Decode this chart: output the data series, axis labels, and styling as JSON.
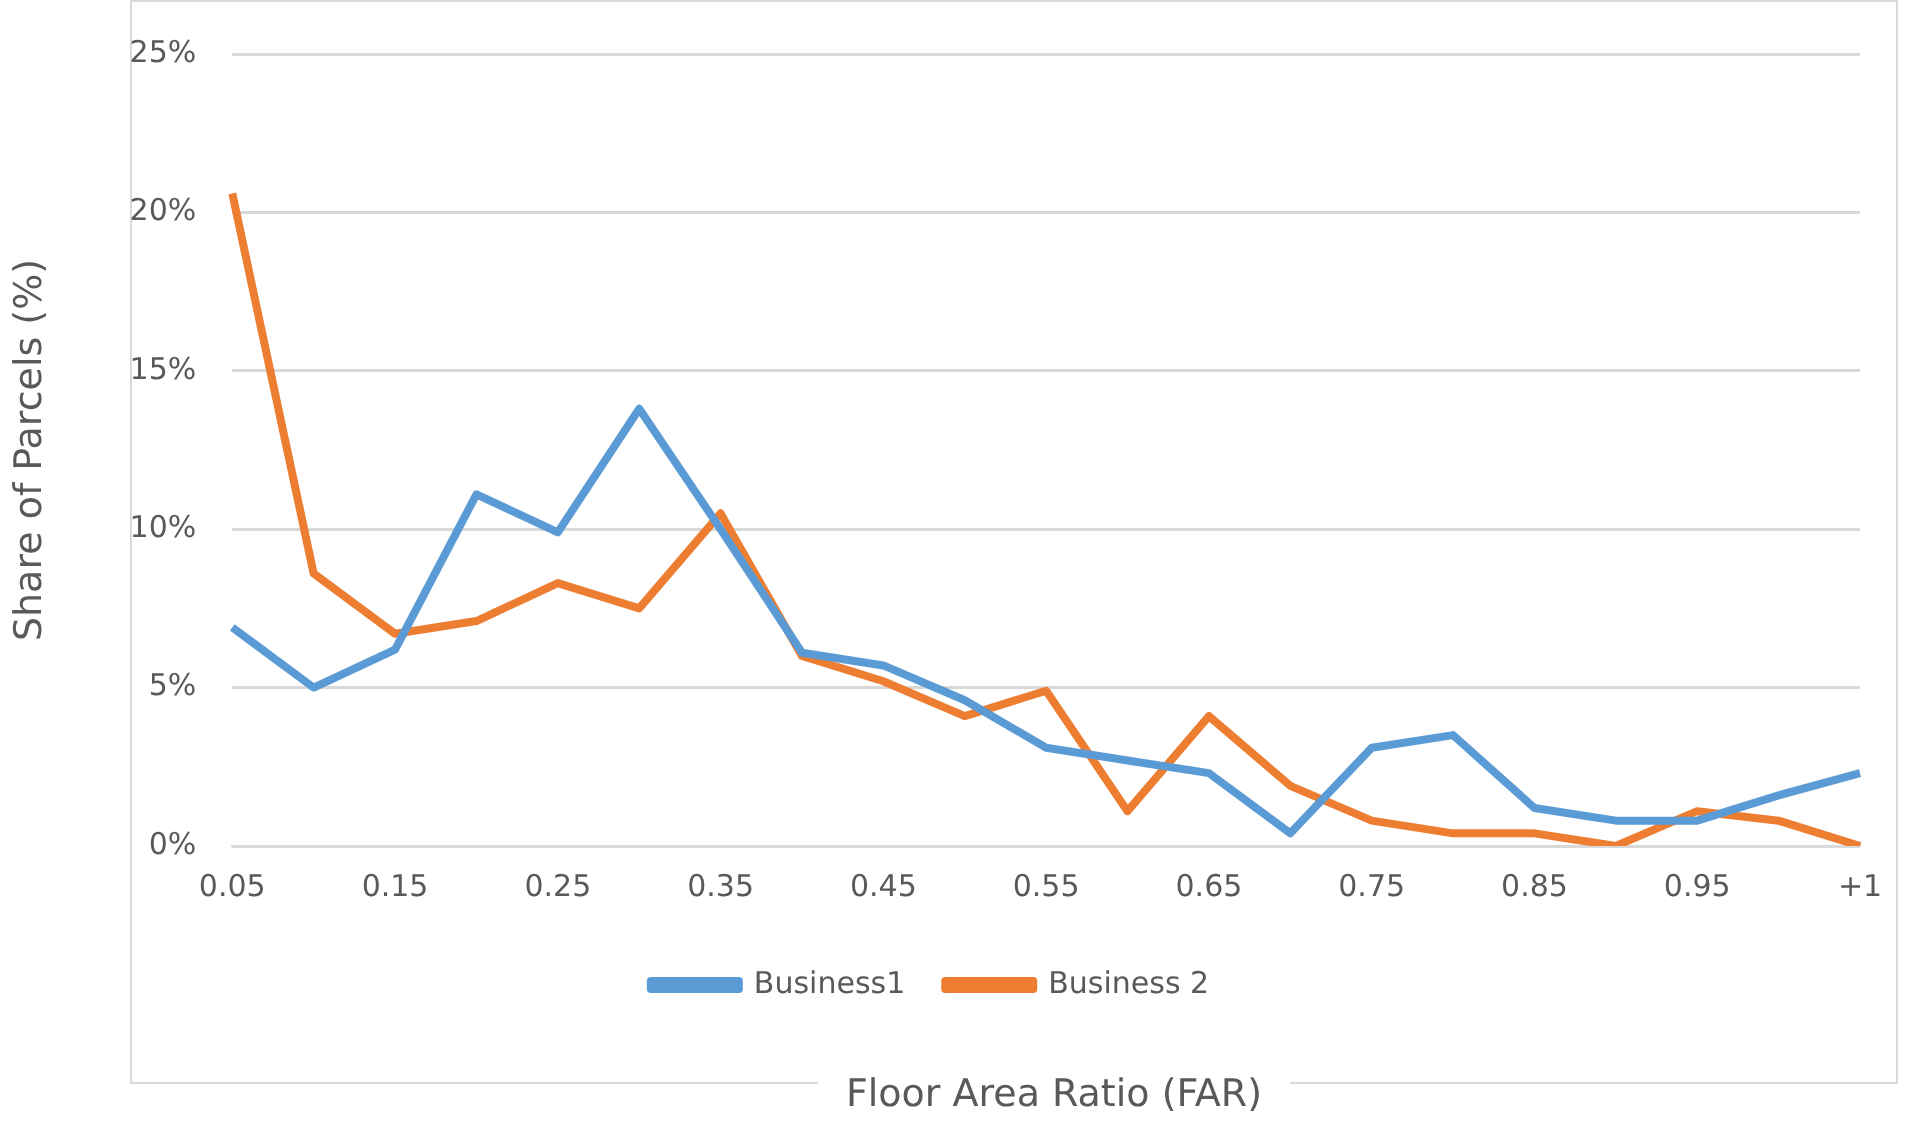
{
  "chart_data": {
    "type": "line",
    "xlabel": "Floor Area Ratio (FAR)",
    "ylabel": "Share of Parcels (%)",
    "categories": [
      "0.05",
      null,
      "0.15",
      null,
      "0.25",
      null,
      "0.35",
      null,
      "0.45",
      null,
      "0.55",
      null,
      "0.65",
      null,
      "0.75",
      null,
      "0.85",
      null,
      "0.95",
      null,
      "+1"
    ],
    "series": [
      {
        "name": "Business1",
        "color": "#5b9bd5",
        "values": [
          6.9,
          5.0,
          6.2,
          11.1,
          9.9,
          13.8,
          10.0,
          6.1,
          5.7,
          4.6,
          3.1,
          2.7,
          2.3,
          0.4,
          3.1,
          3.5,
          1.2,
          0.8,
          0.8,
          1.6,
          2.3
        ]
      },
      {
        "name": "Business 2",
        "color": "#ed7d31",
        "values": [
          20.6,
          8.6,
          6.7,
          7.1,
          8.3,
          7.5,
          10.5,
          6.0,
          5.2,
          4.1,
          4.9,
          1.1,
          4.1,
          1.9,
          0.8,
          0.4,
          0.4,
          0.0,
          1.1,
          0.8,
          0.0
        ]
      }
    ],
    "ylim": [
      0,
      25
    ],
    "yticks": [
      {
        "value": 0,
        "label": "0%"
      },
      {
        "value": 5,
        "label": "5%"
      },
      {
        "value": 10,
        "label": "10%"
      },
      {
        "value": 15,
        "label": "15%"
      },
      {
        "value": 20,
        "label": "20%"
      },
      {
        "value": 25,
        "label": "25%"
      }
    ],
    "grid": "y",
    "legend": "bottom",
    "marker": "none",
    "line_style": "solid"
  }
}
